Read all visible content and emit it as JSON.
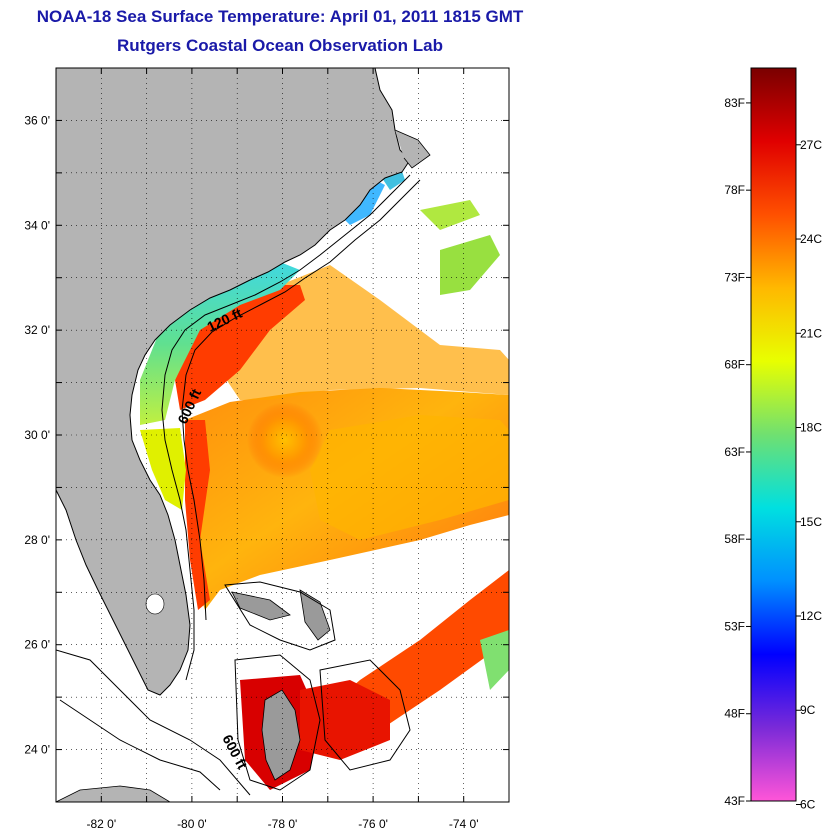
{
  "header": {
    "title": "NOAA-18 Sea Surface Temperature:  April 01, 2011 1815 GMT",
    "subtitle": "Rutgers Coastal Ocean Observation Lab"
  },
  "map": {
    "lon_ticks": [
      "-82 0'",
      "-80 0'",
      "-78 0'",
      "-76 0'",
      "-74 0'"
    ],
    "lat_ticks": [
      "36 0'",
      "34 0'",
      "32 0'",
      "30 0'",
      "28 0'",
      "26 0'",
      "24 0'"
    ],
    "lon_range": [
      -83,
      -73
    ],
    "lat_range": [
      23,
      37
    ],
    "grid": true,
    "contour_labels": [
      "120 ft",
      "600 ft",
      "600 ft"
    ],
    "land_color": "#b4b4b4"
  },
  "colorbar": {
    "fahrenheit_labels": [
      "83F",
      "78F",
      "73F",
      "68F",
      "63F",
      "58F",
      "53F",
      "48F",
      "43F"
    ],
    "celsius_labels": [
      "27C",
      "24C",
      "21C",
      "18C",
      "15C",
      "12C",
      "9C",
      "6C"
    ],
    "range_f": [
      43,
      85
    ],
    "colors": [
      "#ff55d8",
      "#7a2ad8",
      "#0000ff",
      "#0090ff",
      "#00e0e0",
      "#70e070",
      "#e8ff00",
      "#ffb800",
      "#ff5000",
      "#e00000",
      "#7a0000"
    ]
  }
}
